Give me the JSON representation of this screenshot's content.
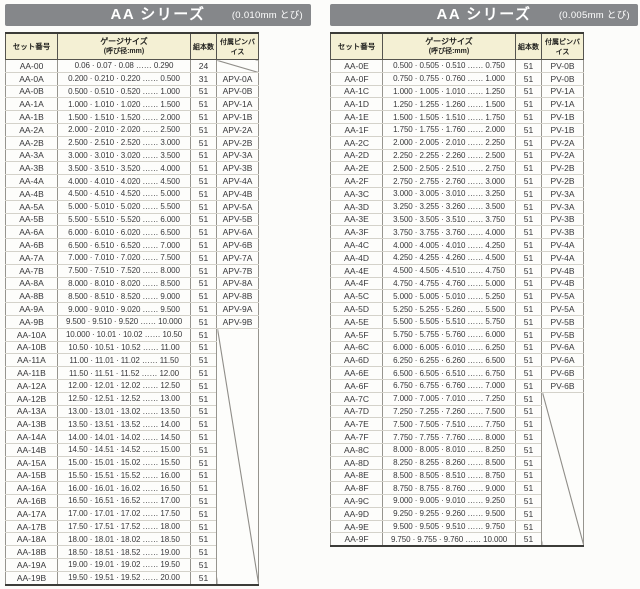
{
  "colors": {
    "titlebar_bg": "#85878a",
    "titlebar_text": "#ffffff",
    "header_bg": "#f4f0d4",
    "border_dark": "#3c3c38",
    "border_light": "#d4d2ca",
    "text": "#37373a"
  },
  "tables": [
    {
      "title": "AA シリーズ",
      "subtitle": "(0.010mm とび)",
      "headers": {
        "set": "セット番号",
        "gauge_line1": "ゲージサイズ",
        "gauge_line2": "(呼び径:mm)",
        "count": "組本数",
        "vise": "付属ピンバイス"
      },
      "slash_region": {
        "start": 21,
        "span": 20
      },
      "rows": [
        {
          "set": "AA-00",
          "gauge": "0.06 · 0.07 · 0.08 …… 0.290",
          "count": "24",
          "vise": "",
          "slash": true
        },
        {
          "set": "AA-0A",
          "gauge": "0.200 · 0.210 · 0.220 …… 0.500",
          "count": "31",
          "vise": "APV-0A"
        },
        {
          "set": "AA-0B",
          "gauge": "0.500 · 0.510 · 0.520 …… 1.000",
          "count": "51",
          "vise": "APV-0B"
        },
        {
          "set": "AA-1A",
          "gauge": "1.000 · 1.010 · 1.020 …… 1.500",
          "count": "51",
          "vise": "APV-1A"
        },
        {
          "set": "AA-1B",
          "gauge": "1.500 · 1.510 · 1.520 …… 2.000",
          "count": "51",
          "vise": "APV-1B"
        },
        {
          "set": "AA-2A",
          "gauge": "2.000 · 2.010 · 2.020 …… 2.500",
          "count": "51",
          "vise": "APV-2A"
        },
        {
          "set": "AA-2B",
          "gauge": "2.500 · 2.510 · 2.520 …… 3.000",
          "count": "51",
          "vise": "APV-2B"
        },
        {
          "set": "AA-3A",
          "gauge": "3.000 · 3.010 · 3.020 …… 3.500",
          "count": "51",
          "vise": "APV-3A"
        },
        {
          "set": "AA-3B",
          "gauge": "3.500 · 3.510 · 3.520 …… 4.000",
          "count": "51",
          "vise": "APV-3B"
        },
        {
          "set": "AA-4A",
          "gauge": "4.000 · 4.010 · 4.020 …… 4.500",
          "count": "51",
          "vise": "APV-4A"
        },
        {
          "set": "AA-4B",
          "gauge": "4.500 · 4.510 · 4.520 …… 5.000",
          "count": "51",
          "vise": "APV-4B"
        },
        {
          "set": "AA-5A",
          "gauge": "5.000 · 5.010 · 5.020 …… 5.500",
          "count": "51",
          "vise": "APV-5A"
        },
        {
          "set": "AA-5B",
          "gauge": "5.500 · 5.510 · 5.520 …… 6.000",
          "count": "51",
          "vise": "APV-5B"
        },
        {
          "set": "AA-6A",
          "gauge": "6.000 · 6.010 · 6.020 …… 6.500",
          "count": "51",
          "vise": "APV-6A"
        },
        {
          "set": "AA-6B",
          "gauge": "6.500 · 6.510 · 6.520 …… 7.000",
          "count": "51",
          "vise": "APV-6B"
        },
        {
          "set": "AA-7A",
          "gauge": "7.000 · 7.010 · 7.020 …… 7.500",
          "count": "51",
          "vise": "APV-7A"
        },
        {
          "set": "AA-7B",
          "gauge": "7.500 · 7.510 · 7.520 …… 8.000",
          "count": "51",
          "vise": "APV-7B"
        },
        {
          "set": "AA-8A",
          "gauge": "8.000 · 8.010 · 8.020 …… 8.500",
          "count": "51",
          "vise": "APV-8A"
        },
        {
          "set": "AA-8B",
          "gauge": "8.500 · 8.510 · 8.520 …… 9.000",
          "count": "51",
          "vise": "APV-8B"
        },
        {
          "set": "AA-9A",
          "gauge": "9.000 · 9.010 · 9.020 …… 9.500",
          "count": "51",
          "vise": "APV-9A"
        },
        {
          "set": "AA-9B",
          "gauge": "9.500 · 9.510 · 9.520 …… 10.000",
          "count": "51",
          "vise": "APV-9B"
        },
        {
          "set": "AA-10A",
          "gauge": "10.000 · 10.01 · 10.02 …… 10.50",
          "count": "51",
          "vise": ""
        },
        {
          "set": "AA-10B",
          "gauge": "10.50 · 10.51 · 10.52 …… 11.00",
          "count": "51",
          "vise": ""
        },
        {
          "set": "AA-11A",
          "gauge": "11.00 · 11.01 · 11.02 …… 11.50",
          "count": "51",
          "vise": ""
        },
        {
          "set": "AA-11B",
          "gauge": "11.50 · 11.51 · 11.52 …… 12.00",
          "count": "51",
          "vise": ""
        },
        {
          "set": "AA-12A",
          "gauge": "12.00 · 12.01 · 12.02 …… 12.50",
          "count": "51",
          "vise": ""
        },
        {
          "set": "AA-12B",
          "gauge": "12.50 · 12.51 · 12.52 …… 13.00",
          "count": "51",
          "vise": ""
        },
        {
          "set": "AA-13A",
          "gauge": "13.00 · 13.01 · 13.02 …… 13.50",
          "count": "51",
          "vise": ""
        },
        {
          "set": "AA-13B",
          "gauge": "13.50 · 13.51 · 13.52 …… 14.00",
          "count": "51",
          "vise": ""
        },
        {
          "set": "AA-14A",
          "gauge": "14.00 · 14.01 · 14.02 …… 14.50",
          "count": "51",
          "vise": ""
        },
        {
          "set": "AA-14B",
          "gauge": "14.50 · 14.51 · 14.52 …… 15.00",
          "count": "51",
          "vise": ""
        },
        {
          "set": "AA-15A",
          "gauge": "15.00 · 15.01 · 15.02 …… 15.50",
          "count": "51",
          "vise": ""
        },
        {
          "set": "AA-15B",
          "gauge": "15.50 · 15.51 · 15.52 …… 16.00",
          "count": "51",
          "vise": ""
        },
        {
          "set": "AA-16A",
          "gauge": "16.00 · 16.01 · 16.02 …… 16.50",
          "count": "51",
          "vise": ""
        },
        {
          "set": "AA-16B",
          "gauge": "16.50 · 16.51 · 16.52 …… 17.00",
          "count": "51",
          "vise": ""
        },
        {
          "set": "AA-17A",
          "gauge": "17.00 · 17.01 · 17.02 …… 17.50",
          "count": "51",
          "vise": ""
        },
        {
          "set": "AA-17B",
          "gauge": "17.50 · 17.51 · 17.52 …… 18.00",
          "count": "51",
          "vise": ""
        },
        {
          "set": "AA-18A",
          "gauge": "18.00 · 18.01 · 18.02 …… 18.50",
          "count": "51",
          "vise": ""
        },
        {
          "set": "AA-18B",
          "gauge": "18.50 · 18.51 · 18.52 …… 19.00",
          "count": "51",
          "vise": ""
        },
        {
          "set": "AA-19A",
          "gauge": "19.00 · 19.01 · 19.02 …… 19.50",
          "count": "51",
          "vise": ""
        },
        {
          "set": "AA-19B",
          "gauge": "19.50 · 19.51 · 19.52 …… 20.00",
          "count": "51",
          "vise": ""
        }
      ]
    },
    {
      "title": "AA シリーズ",
      "subtitle": "(0.005mm とび)",
      "headers": {
        "set": "セット番号",
        "gauge_line1": "ゲージサイズ",
        "gauge_line2": "(呼び径:mm)",
        "count": "組本数",
        "vise": "付属ピンバイス"
      },
      "slash_region": {
        "start": 26,
        "span": 12
      },
      "rows": [
        {
          "set": "AA-0E",
          "gauge": "0.500 · 0.505 · 0.510 …… 0.750",
          "count": "51",
          "vise": "PV-0B"
        },
        {
          "set": "AA-0F",
          "gauge": "0.750 · 0.755 · 0.760 …… 1.000",
          "count": "51",
          "vise": "PV-0B"
        },
        {
          "set": "AA-1C",
          "gauge": "1.000 · 1.005 · 1.010 …… 1.250",
          "count": "51",
          "vise": "PV-1A"
        },
        {
          "set": "AA-1D",
          "gauge": "1.250 · 1.255 · 1.260 …… 1.500",
          "count": "51",
          "vise": "PV-1A"
        },
        {
          "set": "AA-1E",
          "gauge": "1.500 · 1.505 · 1.510 …… 1.750",
          "count": "51",
          "vise": "PV-1B"
        },
        {
          "set": "AA-1F",
          "gauge": "1.750 · 1.755 · 1.760 …… 2.000",
          "count": "51",
          "vise": "PV-1B"
        },
        {
          "set": "AA-2C",
          "gauge": "2.000 · 2.005 · 2.010 …… 2.250",
          "count": "51",
          "vise": "PV-2A"
        },
        {
          "set": "AA-2D",
          "gauge": "2.250 · 2.255 · 2.260 …… 2.500",
          "count": "51",
          "vise": "PV-2A"
        },
        {
          "set": "AA-2E",
          "gauge": "2.500 · 2.505 · 2.510 …… 2.750",
          "count": "51",
          "vise": "PV-2B"
        },
        {
          "set": "AA-2F",
          "gauge": "2.750 · 2.755 · 2.760 …… 3.000",
          "count": "51",
          "vise": "PV-2B"
        },
        {
          "set": "AA-3C",
          "gauge": "3.000 · 3.005 · 3.010 …… 3.250",
          "count": "51",
          "vise": "PV-3A"
        },
        {
          "set": "AA-3D",
          "gauge": "3.250 · 3.255 · 3.260 …… 3.500",
          "count": "51",
          "vise": "PV-3A"
        },
        {
          "set": "AA-3E",
          "gauge": "3.500 · 3.505 · 3.510 …… 3.750",
          "count": "51",
          "vise": "PV-3B"
        },
        {
          "set": "AA-3F",
          "gauge": "3.750 · 3.755 · 3.760 …… 4.000",
          "count": "51",
          "vise": "PV-3B"
        },
        {
          "set": "AA-4C",
          "gauge": "4.000 · 4.005 · 4.010 …… 4.250",
          "count": "51",
          "vise": "PV-4A"
        },
        {
          "set": "AA-4D",
          "gauge": "4.250 · 4.255 · 4.260 …… 4.500",
          "count": "51",
          "vise": "PV-4A"
        },
        {
          "set": "AA-4E",
          "gauge": "4.500 · 4.505 · 4.510 …… 4.750",
          "count": "51",
          "vise": "PV-4B"
        },
        {
          "set": "AA-4F",
          "gauge": "4.750 · 4.755 · 4.760 …… 5.000",
          "count": "51",
          "vise": "PV-4B"
        },
        {
          "set": "AA-5C",
          "gauge": "5.000 · 5.005 · 5.010 …… 5.250",
          "count": "51",
          "vise": "PV-5A"
        },
        {
          "set": "AA-5D",
          "gauge": "5.250 · 5.255 · 5.260 …… 5.500",
          "count": "51",
          "vise": "PV-5A"
        },
        {
          "set": "AA-5E",
          "gauge": "5.500 · 5.505 · 5.510 …… 5.750",
          "count": "51",
          "vise": "PV-5B"
        },
        {
          "set": "AA-5F",
          "gauge": "5.750 · 5.755 · 5.760 …… 6.000",
          "count": "51",
          "vise": "PV-5B"
        },
        {
          "set": "AA-6C",
          "gauge": "6.000 · 6.005 · 6.010 …… 6.250",
          "count": "51",
          "vise": "PV-6A"
        },
        {
          "set": "AA-6D",
          "gauge": "6.250 · 6.255 · 6.260 …… 6.500",
          "count": "51",
          "vise": "PV-6A"
        },
        {
          "set": "AA-6E",
          "gauge": "6.500 · 6.505 · 6.510 …… 6.750",
          "count": "51",
          "vise": "PV-6B"
        },
        {
          "set": "AA-6F",
          "gauge": "6.750 · 6.755 · 6.760 …… 7.000",
          "count": "51",
          "vise": "PV-6B"
        },
        {
          "set": "AA-7C",
          "gauge": "7.000 · 7.005 · 7.010 …… 7.250",
          "count": "51",
          "vise": ""
        },
        {
          "set": "AA-7D",
          "gauge": "7.250 · 7.255 · 7.260 …… 7.500",
          "count": "51",
          "vise": ""
        },
        {
          "set": "AA-7E",
          "gauge": "7.500 · 7.505 · 7.510 …… 7.750",
          "count": "51",
          "vise": ""
        },
        {
          "set": "AA-7F",
          "gauge": "7.750 · 7.755 · 7.760 …… 8.000",
          "count": "51",
          "vise": ""
        },
        {
          "set": "AA-8C",
          "gauge": "8.000 · 8.005 · 8.010 …… 8.250",
          "count": "51",
          "vise": ""
        },
        {
          "set": "AA-8D",
          "gauge": "8.250 · 8.255 · 8.260 …… 8.500",
          "count": "51",
          "vise": ""
        },
        {
          "set": "AA-8E",
          "gauge": "8.500 · 8.505 · 8.510 …… 8.750",
          "count": "51",
          "vise": ""
        },
        {
          "set": "AA-8F",
          "gauge": "8.750 · 8.755 · 8.760 …… 9.000",
          "count": "51",
          "vise": ""
        },
        {
          "set": "AA-9C",
          "gauge": "9.000 · 9.005 · 9.010 …… 9.250",
          "count": "51",
          "vise": ""
        },
        {
          "set": "AA-9D",
          "gauge": "9.250 · 9.255 · 9.260 …… 9.500",
          "count": "51",
          "vise": ""
        },
        {
          "set": "AA-9E",
          "gauge": "9.500 · 9.505 · 9.510 …… 9.750",
          "count": "51",
          "vise": ""
        },
        {
          "set": "AA-9F",
          "gauge": "9.750 · 9.755 · 9.760 …… 10.000",
          "count": "51",
          "vise": ""
        }
      ]
    }
  ]
}
